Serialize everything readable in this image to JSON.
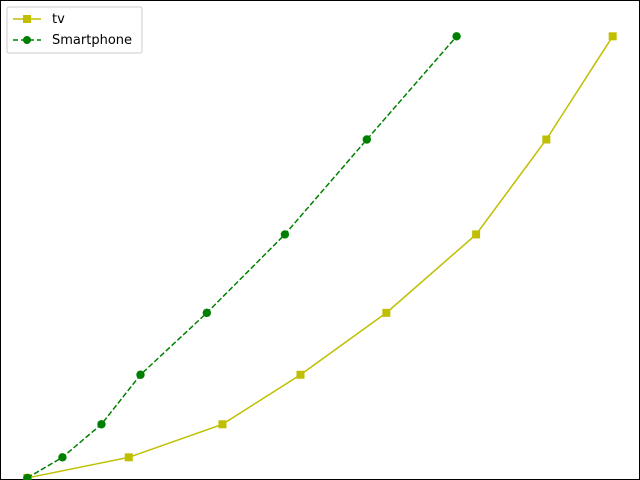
{
  "chart_data": {
    "type": "line",
    "title": "",
    "xlabel": "",
    "ylabel": "",
    "grid": false,
    "axes_visible": false,
    "legend_position": "upper-left",
    "xlim": [
      -0.7,
      15.7
    ],
    "ylim": [
      -0.05,
      11.58
    ],
    "series": [
      {
        "name": "tv",
        "color": "#bfbf00",
        "linestyle": "solid",
        "marker": "square",
        "x": [
          0,
          2.6,
          5.0,
          7.0,
          9.2,
          11.5,
          13.3,
          15.0
        ],
        "y": [
          0.0,
          0.5,
          1.3,
          2.5,
          4.0,
          5.9,
          8.2,
          10.7
        ]
      },
      {
        "name": "Smartphone",
        "color": "#008000",
        "linestyle": "dashed",
        "marker": "circle",
        "x": [
          0,
          0.9,
          1.9,
          2.9,
          4.6,
          6.6,
          8.7,
          11.0
        ],
        "y": [
          0.0,
          0.5,
          1.3,
          2.5,
          4.0,
          5.9,
          8.2,
          10.7
        ]
      }
    ]
  }
}
